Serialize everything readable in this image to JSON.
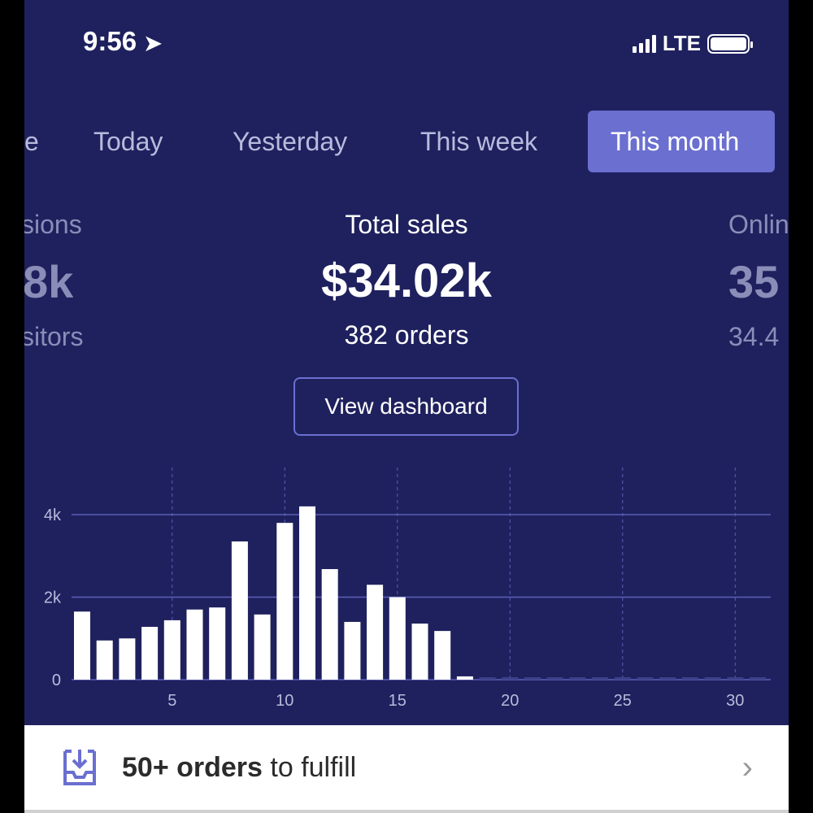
{
  "status_bar": {
    "time": "9:56",
    "network": "LTE"
  },
  "tabs": [
    {
      "label": "e"
    },
    {
      "label": "Today"
    },
    {
      "label": "Yesterday"
    },
    {
      "label": "This week"
    },
    {
      "label": "This month",
      "active": true
    }
  ],
  "kpis": {
    "left": {
      "title": "sions",
      "value": "8k",
      "sub": "sitors"
    },
    "center": {
      "title": "Total sales",
      "value": "$34.02k",
      "sub": "382 orders"
    },
    "right": {
      "title": "Onlin",
      "value": "35",
      "sub": "34.4"
    }
  },
  "view_dashboard_label": "View dashboard",
  "chart_data": {
    "type": "bar",
    "title": "",
    "xlabel": "",
    "ylabel": "",
    "x": [
      1,
      2,
      3,
      4,
      5,
      6,
      7,
      8,
      9,
      10,
      11,
      12,
      13,
      14,
      15,
      16,
      17,
      18,
      19,
      20,
      21,
      22,
      23,
      24,
      25,
      26,
      27,
      28,
      29,
      30,
      31
    ],
    "values": [
      1650,
      950,
      1000,
      1280,
      1440,
      1700,
      1750,
      3350,
      1580,
      3800,
      4200,
      2680,
      1400,
      2300,
      2000,
      1360,
      1180,
      80,
      0,
      0,
      0,
      0,
      0,
      0,
      0,
      0,
      0,
      0,
      0,
      0,
      0
    ],
    "ylim": [
      0,
      4500
    ],
    "y_ticks": [
      {
        "v": 0,
        "label": "0"
      },
      {
        "v": 2000,
        "label": "2k"
      },
      {
        "v": 4000,
        "label": "4k"
      }
    ],
    "x_ticks": [
      {
        "v": 5,
        "label": "5"
      },
      {
        "v": 10,
        "label": "10"
      },
      {
        "v": 15,
        "label": "15"
      },
      {
        "v": 20,
        "label": "20"
      },
      {
        "v": 25,
        "label": "25"
      },
      {
        "v": 30,
        "label": "30"
      }
    ],
    "grid": true,
    "colors": {
      "bar": "#ffffff",
      "grid": "#5a5fb8",
      "future": "#3c4088",
      "label": "#b8bbdc"
    }
  },
  "footer": {
    "count": "50+ orders",
    "rest": " to fulfill"
  },
  "colors": {
    "background": "#1f215e",
    "accent": "#6a6fd0"
  }
}
